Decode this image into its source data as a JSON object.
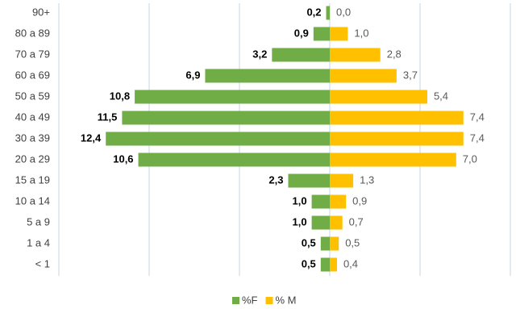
{
  "chart_data": {
    "type": "pyramid",
    "categories": [
      "90+",
      "80 a 89",
      "70 a 79",
      "60 a 69",
      "50 a 59",
      "40 a 49",
      "30 a 39",
      "20 a 29",
      "15 a 19",
      "10 a 14",
      "5 a 9",
      "1 a 4",
      "< 1"
    ],
    "series": [
      {
        "name": "%F",
        "color": "#70ad47",
        "values": [
          0.2,
          0.9,
          3.2,
          6.9,
          10.8,
          11.5,
          12.4,
          10.6,
          2.3,
          1.0,
          1.0,
          0.5,
          0.5
        ],
        "value_labels": [
          "0,2",
          "0,9",
          "3,2",
          "6,9",
          "10,8",
          "11,5",
          "12,4",
          "10,6",
          "2,3",
          "1,0",
          "1,0",
          "0,5",
          "0,5"
        ]
      },
      {
        "name": "% M",
        "color": "#ffc000",
        "values": [
          0.0,
          1.0,
          2.8,
          3.7,
          5.4,
          7.4,
          7.4,
          7.0,
          1.3,
          0.9,
          0.7,
          0.5,
          0.4
        ],
        "value_labels": [
          "0,0",
          "1,0",
          "2,8",
          "3,7",
          "5,4",
          "7,4",
          "7,4",
          "7,0",
          "1,3",
          "0,9",
          "0,7",
          "0,5",
          "0,4"
        ]
      }
    ],
    "xlim": [
      -15,
      10
    ],
    "xticks": [
      -15,
      -10,
      -5,
      0,
      5,
      10
    ],
    "grid": true,
    "legend": "bottom"
  }
}
